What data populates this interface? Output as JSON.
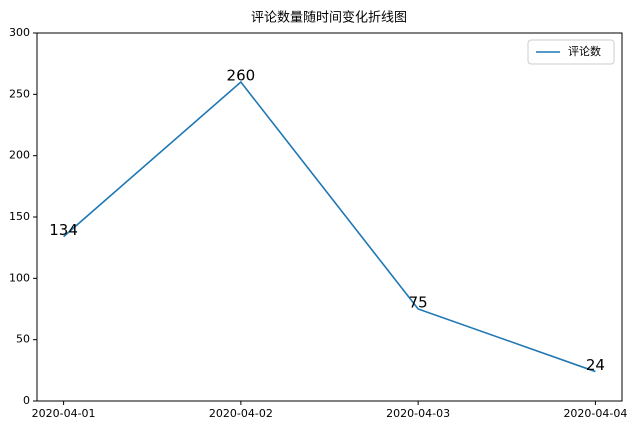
{
  "chart_data": {
    "type": "line",
    "title": "评论数量随时间变化折线图",
    "categories": [
      "2020-04-01",
      "2020-04-02",
      "2020-04-03",
      "2020-04-04"
    ],
    "series": [
      {
        "name": "评论数",
        "color": "#1f77b4",
        "values": [
          134,
          260,
          75,
          24
        ]
      }
    ],
    "ylim": [
      0,
      300
    ],
    "yticks": [
      0,
      50,
      100,
      150,
      200,
      250,
      300
    ],
    "legend": "upper right",
    "data_labels": true
  }
}
